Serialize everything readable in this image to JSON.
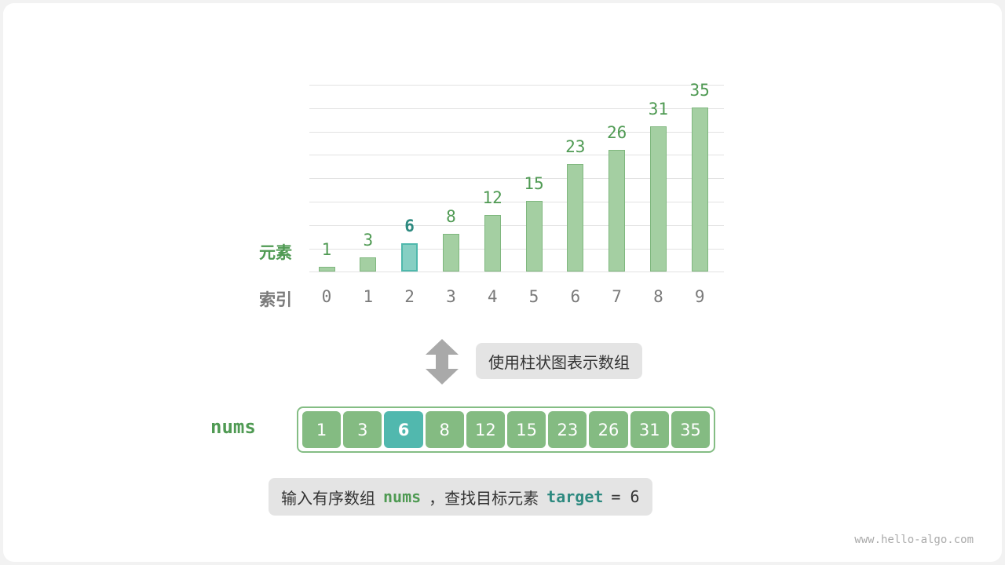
{
  "chart": {
    "value_label": "元素",
    "index_label": "索引",
    "values": [
      1,
      3,
      6,
      8,
      12,
      15,
      23,
      26,
      31,
      35
    ],
    "indices": [
      "0",
      "1",
      "2",
      "3",
      "4",
      "5",
      "6",
      "7",
      "8",
      "9"
    ],
    "highlight_index": 2
  },
  "caption": "使用柱状图表示数组",
  "array": {
    "name": "nums",
    "values": [
      "1",
      "3",
      "6",
      "8",
      "12",
      "15",
      "23",
      "26",
      "31",
      "35"
    ]
  },
  "description": {
    "prefix": "输入有序数组",
    "array_name": "nums",
    "middle": "，查找目标元素",
    "target_name": "target",
    "equals": "= 6"
  },
  "watermark": "www.hello-algo.com",
  "colors": {
    "bar": "#a4cfa2",
    "highlight": "#51b8ae",
    "label_green": "#4f9a53",
    "target_teal": "#2e8a80"
  }
}
